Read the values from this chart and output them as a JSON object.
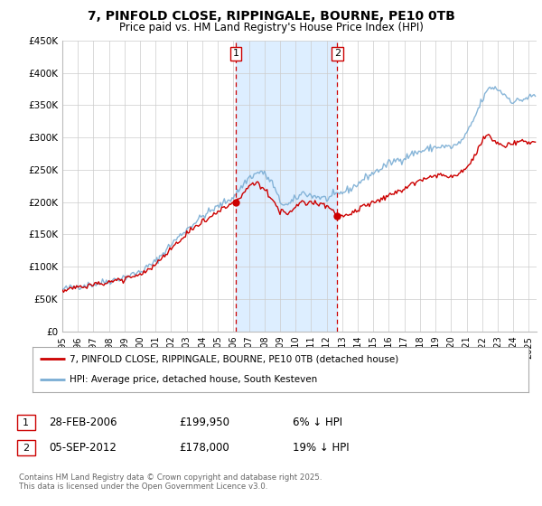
{
  "title": "7, PINFOLD CLOSE, RIPPINGALE, BOURNE, PE10 0TB",
  "subtitle": "Price paid vs. HM Land Registry's House Price Index (HPI)",
  "ylim": [
    0,
    450000
  ],
  "yticks": [
    0,
    50000,
    100000,
    150000,
    200000,
    250000,
    300000,
    350000,
    400000,
    450000
  ],
  "ytick_labels": [
    "£0",
    "£50K",
    "£100K",
    "£150K",
    "£200K",
    "£250K",
    "£300K",
    "£350K",
    "£400K",
    "£450K"
  ],
  "xlim_start": 1995.0,
  "xlim_end": 2025.5,
  "sale1_date": 2006.163,
  "sale1_price": 199950,
  "sale2_date": 2012.676,
  "sale2_price": 178000,
  "sale1_text": "28-FEB-2006",
  "sale1_amount": "£199,950",
  "sale1_pct": "6% ↓ HPI",
  "sale2_text": "05-SEP-2012",
  "sale2_amount": "£178,000",
  "sale2_pct": "19% ↓ HPI",
  "legend_line1": "7, PINFOLD CLOSE, RIPPINGALE, BOURNE, PE10 0TB (detached house)",
  "legend_line2": "HPI: Average price, detached house, South Kesteven",
  "footer": "Contains HM Land Registry data © Crown copyright and database right 2025.\nThis data is licensed under the Open Government Licence v3.0.",
  "line_color_red": "#cc0000",
  "line_color_blue": "#7aadd4",
  "shade_color": "#ddeeff",
  "grid_color": "#cccccc",
  "background_color": "#ffffff"
}
